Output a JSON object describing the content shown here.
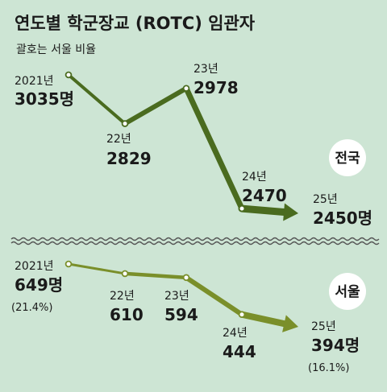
{
  "header": {
    "title": "연도별 학군장교 (ROTC) 임관자",
    "subtitle": "괄호는 서울 비율"
  },
  "colors": {
    "background": "#cde5d4",
    "line_national": "#4a6b1f",
    "line_seoul": "#7a8f2a",
    "wave": "#555555"
  },
  "chart_data": [
    {
      "type": "line",
      "name": "전국",
      "badge": "전국",
      "points": [
        {
          "year_label": "2021년",
          "value": 3035,
          "value_label": "3035명"
        },
        {
          "year_label": "22년",
          "value": 2829,
          "value_label": "2829"
        },
        {
          "year_label": "23년",
          "value": 2978,
          "value_label": "2978"
        },
        {
          "year_label": "24년",
          "value": 2470,
          "value_label": "2470"
        },
        {
          "year_label": "25년",
          "value": 2450,
          "value_label": "2450명"
        }
      ]
    },
    {
      "type": "line",
      "name": "서울",
      "badge": "서울",
      "points": [
        {
          "year_label": "2021년",
          "value": 649,
          "value_label": "649명",
          "pct_label": "(21.4%)"
        },
        {
          "year_label": "22년",
          "value": 610,
          "value_label": "610"
        },
        {
          "year_label": "23년",
          "value": 594,
          "value_label": "594"
        },
        {
          "year_label": "24년",
          "value": 444,
          "value_label": "444"
        },
        {
          "year_label": "25년",
          "value": 394,
          "value_label": "394명",
          "pct_label": "(16.1%)"
        }
      ]
    }
  ]
}
